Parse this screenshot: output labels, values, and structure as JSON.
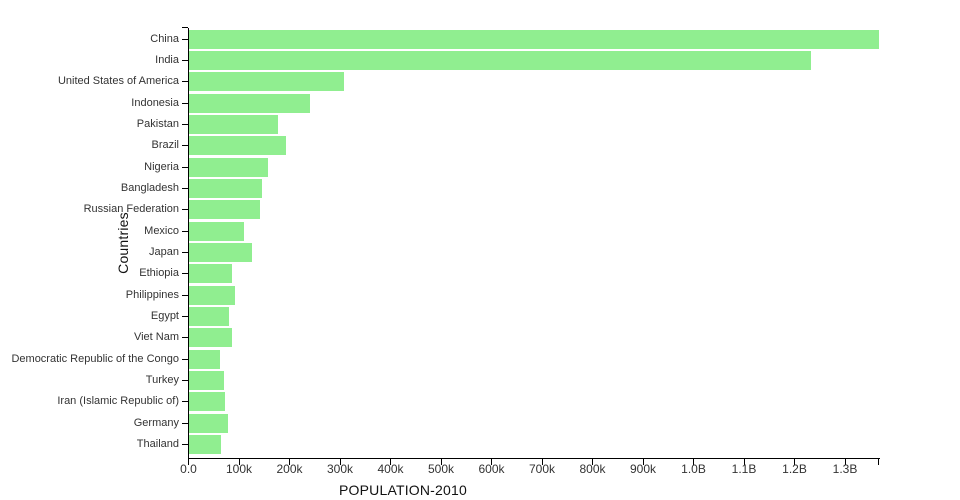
{
  "chart_data": {
    "type": "bar",
    "orientation": "horizontal",
    "title": "",
    "xlabel": "POPULATION-2010",
    "ylabel": "Countries",
    "categories": [
      "China",
      "India",
      "United States of America",
      "Indonesia",
      "Pakistan",
      "Brazil",
      "Nigeria",
      "Bangladesh",
      "Russian Federation",
      "Mexico",
      "Japan",
      "Ethiopia",
      "Philippines",
      "Egypt",
      "Viet Nam",
      "Democratic Republic of the Congo",
      "Turkey",
      "Iran (Islamic Republic of)",
      "Germany",
      "Thailand"
    ],
    "values": [
      1368811,
      1234281,
      309011,
      241834,
      179425,
      195714,
      158503,
      147575,
      142849,
      112532,
      128070,
      87640,
      93967,
      82761,
      87968,
      64564,
      72326,
      74573,
      80827,
      67195
    ],
    "value_unit": "thousands",
    "xlim": [
      0,
      1368811
    ],
    "x_ticks": [
      {
        "value": 0,
        "label": "0.0"
      },
      {
        "value": 100000,
        "label": "100k"
      },
      {
        "value": 200000,
        "label": "200k"
      },
      {
        "value": 300000,
        "label": "300k"
      },
      {
        "value": 400000,
        "label": "400k"
      },
      {
        "value": 500000,
        "label": "500k"
      },
      {
        "value": 600000,
        "label": "600k"
      },
      {
        "value": 700000,
        "label": "700k"
      },
      {
        "value": 800000,
        "label": "800k"
      },
      {
        "value": 900000,
        "label": "900k"
      },
      {
        "value": 1000000,
        "label": "1.0B"
      },
      {
        "value": 1100000,
        "label": "1.1B"
      },
      {
        "value": 1200000,
        "label": "1.2B"
      },
      {
        "value": 1300000,
        "label": "1.3B"
      }
    ],
    "grid": false,
    "legend": false,
    "bar_color": "#90EE90",
    "axis_color": "#000000",
    "tick_label_color": "#333333",
    "title_color": "#111111",
    "background": "#FFFFFF"
  }
}
